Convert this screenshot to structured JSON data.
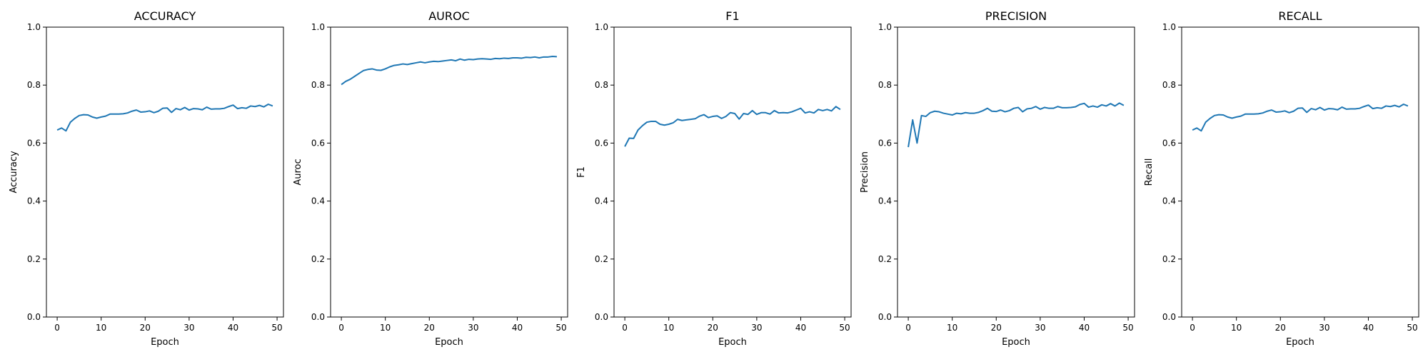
{
  "colors": {
    "line": "#1f77b4",
    "axis": "#000000",
    "background": "#ffffff"
  },
  "chart_data": [
    {
      "type": "line",
      "title": "ACCURACY",
      "xlabel": "Epoch",
      "ylabel": "Accuracy",
      "xlim": [
        -2.45,
        51.45
      ],
      "ylim": [
        0.0,
        1.0
      ],
      "xticks": [
        0,
        10,
        20,
        30,
        40,
        50
      ],
      "yticks": [
        0.0,
        0.2,
        0.4,
        0.6,
        0.8,
        1.0
      ],
      "grid": false,
      "x": [
        0,
        1,
        2,
        3,
        4,
        5,
        6,
        7,
        8,
        9,
        10,
        11,
        12,
        13,
        14,
        15,
        16,
        17,
        18,
        19,
        20,
        21,
        22,
        23,
        24,
        25,
        26,
        27,
        28,
        29,
        30,
        31,
        32,
        33,
        34,
        35,
        36,
        37,
        38,
        39,
        40,
        41,
        42,
        43,
        44,
        45,
        46,
        47,
        48,
        49
      ],
      "series": [
        {
          "values": [
            0.645,
            0.652,
            0.642,
            0.672,
            0.685,
            0.695,
            0.698,
            0.697,
            0.69,
            0.686,
            0.69,
            0.693,
            0.7,
            0.7,
            0.7,
            0.701,
            0.704,
            0.71,
            0.714,
            0.707,
            0.708,
            0.711,
            0.705,
            0.71,
            0.72,
            0.721,
            0.706,
            0.719,
            0.715,
            0.723,
            0.714,
            0.719,
            0.718,
            0.715,
            0.724,
            0.717,
            0.718,
            0.718,
            0.72,
            0.726,
            0.731,
            0.719,
            0.722,
            0.72,
            0.728,
            0.726,
            0.73,
            0.725,
            0.734,
            0.728
          ]
        }
      ]
    },
    {
      "type": "line",
      "title": "AUROC",
      "xlabel": "Epoch",
      "ylabel": "Auroc",
      "xlim": [
        -2.45,
        51.45
      ],
      "ylim": [
        0.0,
        1.0
      ],
      "xticks": [
        0,
        10,
        20,
        30,
        40,
        50
      ],
      "yticks": [
        0.0,
        0.2,
        0.4,
        0.6,
        0.8,
        1.0
      ],
      "grid": false,
      "x": [
        0,
        1,
        2,
        3,
        4,
        5,
        6,
        7,
        8,
        9,
        10,
        11,
        12,
        13,
        14,
        15,
        16,
        17,
        18,
        19,
        20,
        21,
        22,
        23,
        24,
        25,
        26,
        27,
        28,
        29,
        30,
        31,
        32,
        33,
        34,
        35,
        36,
        37,
        38,
        39,
        40,
        41,
        42,
        43,
        44,
        45,
        46,
        47,
        48,
        49
      ],
      "series": [
        {
          "values": [
            0.802,
            0.813,
            0.82,
            0.83,
            0.84,
            0.85,
            0.854,
            0.856,
            0.852,
            0.851,
            0.856,
            0.863,
            0.868,
            0.87,
            0.873,
            0.871,
            0.874,
            0.877,
            0.88,
            0.877,
            0.88,
            0.882,
            0.881,
            0.883,
            0.885,
            0.887,
            0.884,
            0.89,
            0.886,
            0.889,
            0.888,
            0.89,
            0.891,
            0.89,
            0.889,
            0.892,
            0.891,
            0.893,
            0.892,
            0.894,
            0.894,
            0.893,
            0.896,
            0.895,
            0.897,
            0.894,
            0.897,
            0.897,
            0.899,
            0.898
          ]
        }
      ]
    },
    {
      "type": "line",
      "title": "F1",
      "xlabel": "Epoch",
      "ylabel": "F1",
      "xlim": [
        -2.45,
        51.45
      ],
      "ylim": [
        0.0,
        1.0
      ],
      "xticks": [
        0,
        10,
        20,
        30,
        40,
        50
      ],
      "yticks": [
        0.0,
        0.2,
        0.4,
        0.6,
        0.8,
        1.0
      ],
      "grid": false,
      "x": [
        0,
        1,
        2,
        3,
        4,
        5,
        6,
        7,
        8,
        9,
        10,
        11,
        12,
        13,
        14,
        15,
        16,
        17,
        18,
        19,
        20,
        21,
        22,
        23,
        24,
        25,
        26,
        27,
        28,
        29,
        30,
        31,
        32,
        33,
        34,
        35,
        36,
        37,
        38,
        39,
        40,
        41,
        42,
        43,
        44,
        45,
        46,
        47,
        48,
        49
      ],
      "series": [
        {
          "values": [
            0.588,
            0.617,
            0.616,
            0.645,
            0.66,
            0.672,
            0.675,
            0.675,
            0.665,
            0.662,
            0.665,
            0.67,
            0.682,
            0.678,
            0.68,
            0.682,
            0.684,
            0.693,
            0.698,
            0.688,
            0.692,
            0.694,
            0.685,
            0.692,
            0.705,
            0.702,
            0.683,
            0.702,
            0.699,
            0.712,
            0.699,
            0.705,
            0.705,
            0.7,
            0.712,
            0.704,
            0.705,
            0.704,
            0.708,
            0.714,
            0.72,
            0.704,
            0.708,
            0.704,
            0.716,
            0.712,
            0.716,
            0.711,
            0.726,
            0.716
          ]
        }
      ]
    },
    {
      "type": "line",
      "title": "PRECISION",
      "xlabel": "Epoch",
      "ylabel": "Precision",
      "xlim": [
        -2.45,
        51.45
      ],
      "ylim": [
        0.0,
        1.0
      ],
      "xticks": [
        0,
        10,
        20,
        30,
        40,
        50
      ],
      "yticks": [
        0.0,
        0.2,
        0.4,
        0.6,
        0.8,
        1.0
      ],
      "grid": false,
      "x": [
        0,
        1,
        2,
        3,
        4,
        5,
        6,
        7,
        8,
        9,
        10,
        11,
        12,
        13,
        14,
        15,
        16,
        17,
        18,
        19,
        20,
        21,
        22,
        23,
        24,
        25,
        26,
        27,
        28,
        29,
        30,
        31,
        32,
        33,
        34,
        35,
        36,
        37,
        38,
        39,
        40,
        41,
        42,
        43,
        44,
        45,
        46,
        47,
        48,
        49
      ],
      "series": [
        {
          "values": [
            0.586,
            0.68,
            0.6,
            0.695,
            0.692,
            0.705,
            0.71,
            0.708,
            0.703,
            0.7,
            0.697,
            0.703,
            0.701,
            0.705,
            0.703,
            0.703,
            0.706,
            0.712,
            0.72,
            0.71,
            0.709,
            0.714,
            0.708,
            0.712,
            0.72,
            0.723,
            0.708,
            0.718,
            0.72,
            0.726,
            0.717,
            0.723,
            0.72,
            0.72,
            0.726,
            0.722,
            0.722,
            0.723,
            0.725,
            0.733,
            0.737,
            0.724,
            0.728,
            0.724,
            0.732,
            0.728,
            0.736,
            0.728,
            0.738,
            0.73
          ]
        }
      ]
    },
    {
      "type": "line",
      "title": "RECALL",
      "xlabel": "Epoch",
      "ylabel": "Recall",
      "xlim": [
        -2.45,
        51.45
      ],
      "ylim": [
        0.0,
        1.0
      ],
      "xticks": [
        0,
        10,
        20,
        30,
        40,
        50
      ],
      "yticks": [
        0.0,
        0.2,
        0.4,
        0.6,
        0.8,
        1.0
      ],
      "grid": false,
      "x": [
        0,
        1,
        2,
        3,
        4,
        5,
        6,
        7,
        8,
        9,
        10,
        11,
        12,
        13,
        14,
        15,
        16,
        17,
        18,
        19,
        20,
        21,
        22,
        23,
        24,
        25,
        26,
        27,
        28,
        29,
        30,
        31,
        32,
        33,
        34,
        35,
        36,
        37,
        38,
        39,
        40,
        41,
        42,
        43,
        44,
        45,
        46,
        47,
        48,
        49
      ],
      "series": [
        {
          "values": [
            0.645,
            0.652,
            0.642,
            0.672,
            0.685,
            0.695,
            0.698,
            0.697,
            0.69,
            0.686,
            0.69,
            0.693,
            0.7,
            0.7,
            0.7,
            0.701,
            0.704,
            0.71,
            0.714,
            0.707,
            0.708,
            0.711,
            0.705,
            0.71,
            0.72,
            0.721,
            0.706,
            0.719,
            0.715,
            0.723,
            0.714,
            0.719,
            0.718,
            0.715,
            0.724,
            0.717,
            0.718,
            0.718,
            0.72,
            0.726,
            0.731,
            0.719,
            0.722,
            0.72,
            0.728,
            0.726,
            0.73,
            0.725,
            0.734,
            0.728
          ]
        }
      ]
    }
  ]
}
